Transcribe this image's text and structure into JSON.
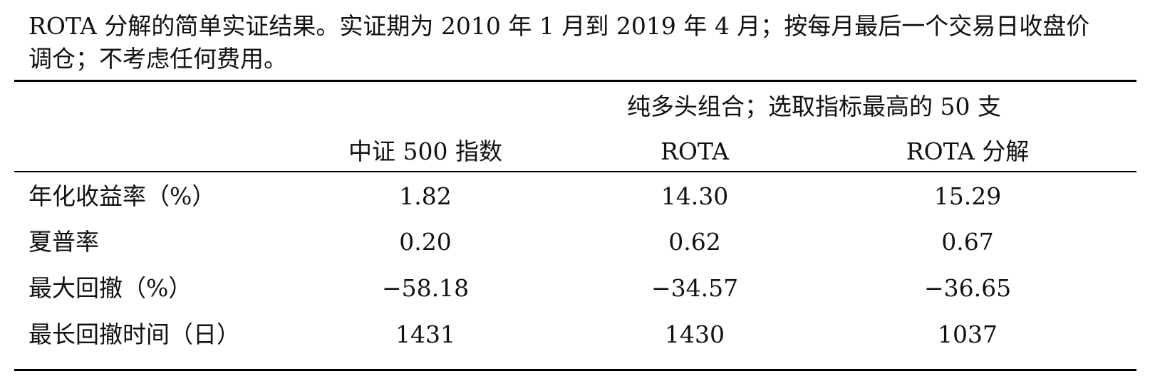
{
  "caption": "ROTA 分解的简单实证结果。实证期为 2010 年 1 月到 2019 年 4 月；按每月最后一个交易日收盘价调仓；不考虑任何费用。",
  "table": {
    "group_header": "纯多头组合；选取指标最高的 50 支",
    "columns": [
      "中证 500 指数",
      "ROTA",
      "ROTA 分解"
    ],
    "rows": [
      {
        "label": "年化收益率（%）",
        "values": [
          "1.82",
          "14.30",
          "15.29"
        ]
      },
      {
        "label": "夏普率",
        "values": [
          "0.20",
          "0.62",
          "0.67"
        ]
      },
      {
        "label": "最大回撤（%）",
        "values": [
          "−58.18",
          "−34.57",
          "−36.65"
        ]
      },
      {
        "label": "最长回撤时间（日）",
        "values": [
          "1431",
          "1430",
          "1037"
        ]
      }
    ]
  }
}
